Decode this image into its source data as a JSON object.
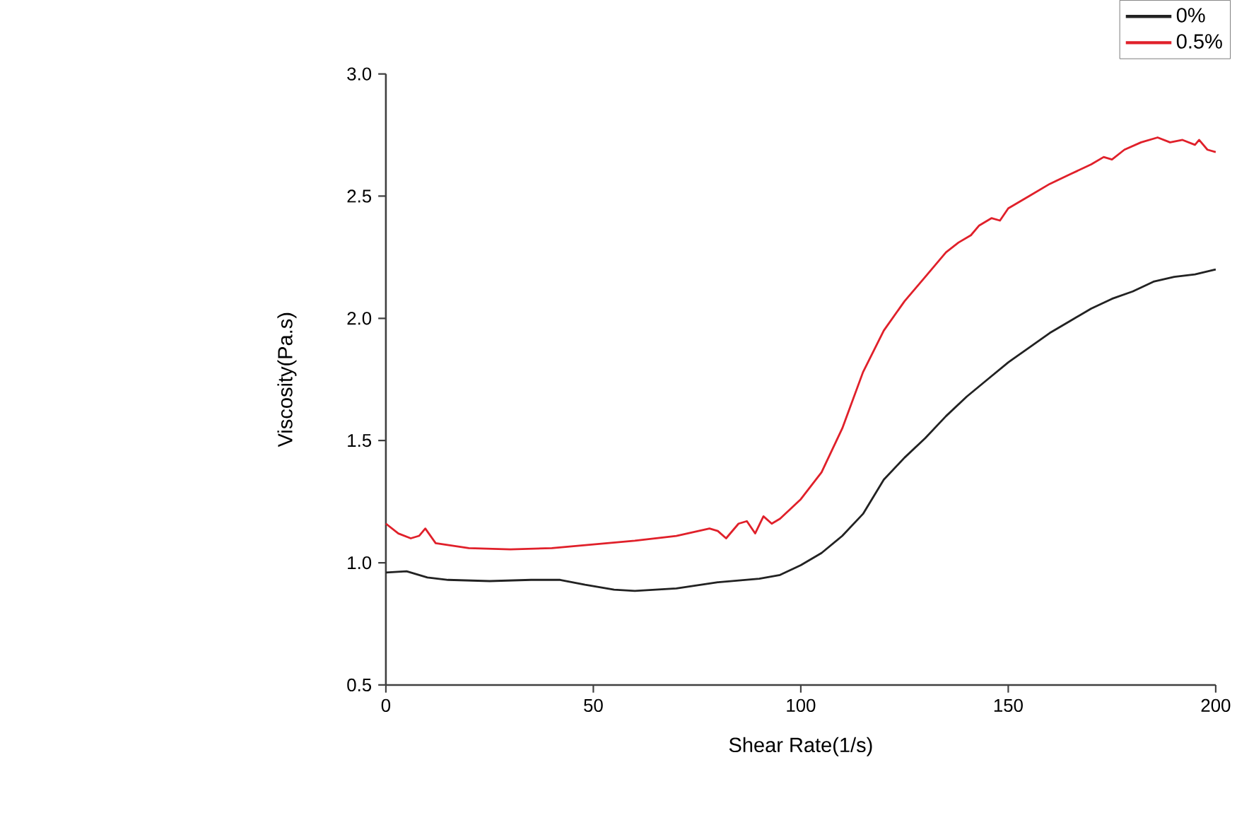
{
  "chart_data": {
    "type": "line",
    "xlabel": "Shear Rate(1/s)",
    "ylabel": "Viscosity(Pa.s)",
    "xlim": [
      0,
      200
    ],
    "ylim": [
      0.5,
      3.0
    ],
    "xticks": [
      0,
      50,
      100,
      150,
      200
    ],
    "yticks": [
      {
        "value": 0.5,
        "label": "0.5"
      },
      {
        "value": 1.0,
        "label": "1.0"
      },
      {
        "value": 1.5,
        "label": "1.5"
      },
      {
        "value": 2.0,
        "label": "2.0"
      },
      {
        "value": 2.5,
        "label": "2.5"
      },
      {
        "value": 3.0,
        "label": "3.0"
      }
    ],
    "legend": "top right",
    "grid": false,
    "series": [
      {
        "name": "0%",
        "color": "#222222",
        "x": [
          0,
          5,
          10,
          15,
          25,
          35,
          42,
          48,
          55,
          60,
          70,
          80,
          90,
          95,
          100,
          105,
          110,
          115,
          120,
          125,
          130,
          135,
          140,
          145,
          150,
          155,
          160,
          165,
          170,
          175,
          180,
          185,
          190,
          195,
          200
        ],
        "values": [
          0.96,
          0.965,
          0.94,
          0.93,
          0.925,
          0.93,
          0.93,
          0.91,
          0.89,
          0.885,
          0.895,
          0.92,
          0.935,
          0.95,
          0.99,
          1.04,
          1.11,
          1.2,
          1.34,
          1.43,
          1.51,
          1.6,
          1.68,
          1.75,
          1.82,
          1.88,
          1.94,
          1.99,
          2.04,
          2.08,
          2.11,
          2.15,
          2.17,
          2.18,
          2.2
        ]
      },
      {
        "name": "0.5%",
        "color": "#e0202a",
        "x": [
          0,
          3,
          6,
          8,
          9.5,
          12,
          20,
          30,
          40,
          50,
          60,
          70,
          78,
          80,
          82,
          85,
          87,
          89,
          91,
          93,
          95,
          100,
          105,
          110,
          115,
          120,
          125,
          130,
          135,
          138,
          141,
          143,
          146,
          148,
          150,
          155,
          160,
          165,
          170,
          173,
          175,
          178,
          182,
          186,
          189,
          192,
          195,
          196,
          198,
          200
        ],
        "values": [
          1.16,
          1.12,
          1.1,
          1.11,
          1.14,
          1.08,
          1.06,
          1.055,
          1.06,
          1.075,
          1.09,
          1.11,
          1.14,
          1.13,
          1.1,
          1.16,
          1.17,
          1.12,
          1.19,
          1.16,
          1.18,
          1.26,
          1.37,
          1.55,
          1.78,
          1.95,
          2.07,
          2.17,
          2.27,
          2.31,
          2.34,
          2.38,
          2.41,
          2.4,
          2.45,
          2.5,
          2.55,
          2.59,
          2.63,
          2.66,
          2.65,
          2.69,
          2.72,
          2.74,
          2.72,
          2.73,
          2.71,
          2.73,
          2.69,
          2.68
        ]
      }
    ]
  }
}
